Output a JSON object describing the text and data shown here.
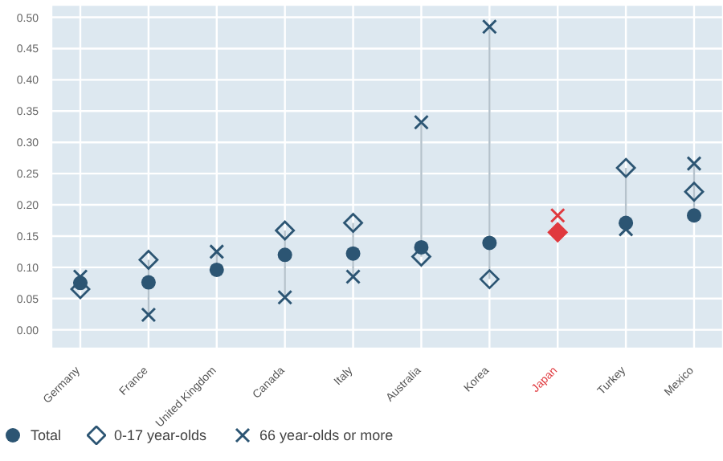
{
  "chart_data": {
    "type": "scatter",
    "categories": [
      "Germany",
      "France",
      "United Kingdom",
      "Canada",
      "Italy",
      "Australia",
      "Korea",
      "Japan",
      "Turkey",
      "Mexico"
    ],
    "series": [
      {
        "name": "Total",
        "color": "#2c5573",
        "marker": "circle",
        "values": [
          0.075,
          0.076,
          0.096,
          0.12,
          0.122,
          0.132,
          0.139,
          null,
          0.171,
          0.183
        ]
      },
      {
        "name": "0-17 year-olds",
        "color": "#2c5573",
        "marker": "diamond",
        "colors": [
          "#2c5573",
          "#2c5573",
          null,
          "#2c5573",
          "#2c5573",
          "#2c5573",
          "#2c5573",
          "#e0393e",
          "#2c5573",
          "#2c5573"
        ],
        "values": [
          0.065,
          0.112,
          null,
          0.159,
          0.171,
          0.117,
          0.081,
          0.156,
          0.259,
          0.221
        ]
      },
      {
        "name": "66 year-olds or more",
        "color": "#2c5573",
        "marker": "cross",
        "colors": [
          "#2c5573",
          "#2c5573",
          "#2c5573",
          "#2c5573",
          "#2c5573",
          "#2c5573",
          "#2c5573",
          "#e0393e",
          "#2c5573",
          "#2c5573"
        ],
        "values": [
          0.085,
          0.024,
          0.125,
          0.052,
          0.085,
          0.332,
          0.485,
          0.183,
          0.161,
          0.266
        ]
      }
    ],
    "ylim": [
      -0.03,
      0.52
    ],
    "yticks": [
      {
        "value": 0,
        "label": "0.00"
      },
      0.05,
      {
        "value": 0.1,
        "label": "0.10"
      },
      0.15,
      {
        "value": 0.2,
        "label": "0.20"
      },
      0.25,
      {
        "value": 0.3,
        "label": "0.30"
      },
      0.35,
      {
        "value": 0.4,
        "label": "0.40"
      },
      0.45,
      {
        "value": 0.5,
        "label": "0.50"
      }
    ],
    "grid": true,
    "legend": "bottom left"
  }
}
